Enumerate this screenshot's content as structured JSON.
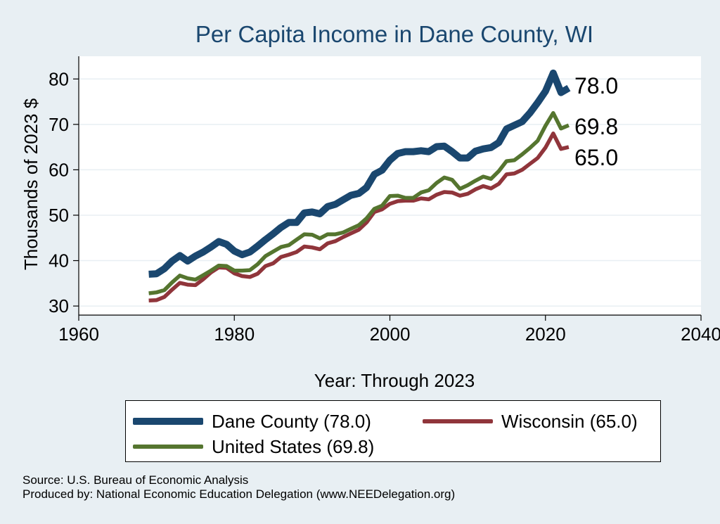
{
  "colors": {
    "background": "#e8eff3",
    "plot_background": "#ffffff",
    "grid": "#e8eff3",
    "dane": "#1a476f",
    "wisconsin": "#90353b",
    "us": "#55752f"
  },
  "chart_data": {
    "type": "line",
    "title": "Per Capita Income in Dane County, WI",
    "xlabel": "Year: Through 2023",
    "ylabel": "Thousands of 2023 $",
    "xlim": [
      1960,
      2040
    ],
    "ylim": [
      28,
      85
    ],
    "xticks": [
      1960,
      1980,
      2000,
      2020,
      2040
    ],
    "yticks": [
      30,
      40,
      50,
      60,
      70,
      80
    ],
    "grid": true,
    "legend_position": "bottom",
    "series": [
      {
        "key": "dane",
        "name": "Dane County (78.0)",
        "end_label": "78.0",
        "x": [
          1969,
          1970,
          1971,
          1972,
          1973,
          1974,
          1975,
          1976,
          1977,
          1978,
          1979,
          1980,
          1981,
          1982,
          1983,
          1984,
          1985,
          1986,
          1987,
          1988,
          1989,
          1990,
          1991,
          1992,
          1993,
          1994,
          1995,
          1996,
          1997,
          1998,
          1999,
          2000,
          2001,
          2002,
          2003,
          2004,
          2005,
          2006,
          2007,
          2008,
          2009,
          2010,
          2011,
          2012,
          2013,
          2014,
          2015,
          2016,
          2017,
          2018,
          2019,
          2020,
          2021,
          2022,
          2023
        ],
        "y": [
          37.0,
          37.1,
          38.2,
          39.9,
          41.1,
          39.9,
          41.0,
          41.9,
          43.0,
          44.2,
          43.6,
          42.1,
          41.3,
          41.9,
          43.2,
          44.6,
          45.9,
          47.3,
          48.4,
          48.4,
          50.5,
          50.7,
          50.3,
          51.9,
          52.4,
          53.4,
          54.4,
          54.8,
          56.1,
          59.0,
          59.9,
          62.1,
          63.6,
          64.0,
          64.0,
          64.2,
          64.0,
          65.1,
          65.2,
          64.0,
          62.6,
          62.6,
          64.1,
          64.6,
          64.9,
          66.0,
          69.0,
          69.8,
          70.6,
          72.5,
          74.8,
          77.3,
          81.3,
          77.0,
          78.0
        ]
      },
      {
        "key": "wisconsin",
        "name": "Wisconsin (65.0)",
        "end_label": "65.0",
        "x": [
          1969,
          1970,
          1971,
          1972,
          1973,
          1974,
          1975,
          1976,
          1977,
          1978,
          1979,
          1980,
          1981,
          1982,
          1983,
          1984,
          1985,
          1986,
          1987,
          1988,
          1989,
          1990,
          1991,
          1992,
          1993,
          1994,
          1995,
          1996,
          1997,
          1998,
          1999,
          2000,
          2001,
          2002,
          2003,
          2004,
          2005,
          2006,
          2007,
          2008,
          2009,
          2010,
          2011,
          2012,
          2013,
          2014,
          2015,
          2016,
          2017,
          2018,
          2019,
          2020,
          2021,
          2022,
          2023
        ],
        "y": [
          31.2,
          31.3,
          32.0,
          33.6,
          35.1,
          34.7,
          34.6,
          35.9,
          37.4,
          38.5,
          38.4,
          37.2,
          36.6,
          36.4,
          37.1,
          38.8,
          39.4,
          40.8,
          41.3,
          41.9,
          43.1,
          42.9,
          42.5,
          43.8,
          44.3,
          45.2,
          46.0,
          46.8,
          48.4,
          50.7,
          51.3,
          52.5,
          53.1,
          53.2,
          53.2,
          53.7,
          53.5,
          54.5,
          55.1,
          55.0,
          54.3,
          54.7,
          55.7,
          56.4,
          55.9,
          56.9,
          59.0,
          59.2,
          60.0,
          61.3,
          62.6,
          64.9,
          68.0,
          64.6,
          65.0
        ]
      },
      {
        "key": "us",
        "name": "United States (69.8)",
        "end_label": "69.8",
        "x": [
          1969,
          1970,
          1971,
          1972,
          1973,
          1974,
          1975,
          1976,
          1977,
          1978,
          1979,
          1980,
          1981,
          1982,
          1983,
          1984,
          1985,
          1986,
          1987,
          1988,
          1989,
          1990,
          1991,
          1992,
          1993,
          1994,
          1995,
          1996,
          1997,
          1998,
          1999,
          2000,
          2001,
          2002,
          2003,
          2004,
          2005,
          2006,
          2007,
          2008,
          2009,
          2010,
          2011,
          2012,
          2013,
          2014,
          2015,
          2016,
          2017,
          2018,
          2019,
          2020,
          2021,
          2022,
          2023
        ],
        "y": [
          32.8,
          33.0,
          33.5,
          35.2,
          36.7,
          36.1,
          35.8,
          36.8,
          37.8,
          38.9,
          38.8,
          37.8,
          37.8,
          37.9,
          39.2,
          41.0,
          42.0,
          43.0,
          43.4,
          44.6,
          45.8,
          45.7,
          44.9,
          45.8,
          45.8,
          46.2,
          47.0,
          47.8,
          49.3,
          51.4,
          52.1,
          54.2,
          54.3,
          53.8,
          53.8,
          55.0,
          55.5,
          57.1,
          58.3,
          57.8,
          55.8,
          56.6,
          57.6,
          58.5,
          58.0,
          59.7,
          61.9,
          62.1,
          63.4,
          64.8,
          66.4,
          69.7,
          72.5,
          69.1,
          69.8
        ]
      }
    ]
  },
  "legend": {
    "items": [
      {
        "key": "dane",
        "label": "Dane County (78.0)"
      },
      {
        "key": "wisconsin",
        "label": "Wisconsin (65.0)"
      },
      {
        "key": "us",
        "label": "United States (69.8)"
      }
    ]
  },
  "notes": {
    "source": "Source: U.S. Bureau of Economic Analysis",
    "produced_by": "Produced by: National Economic Education Delegation (www.NEEDelegation.org)"
  }
}
